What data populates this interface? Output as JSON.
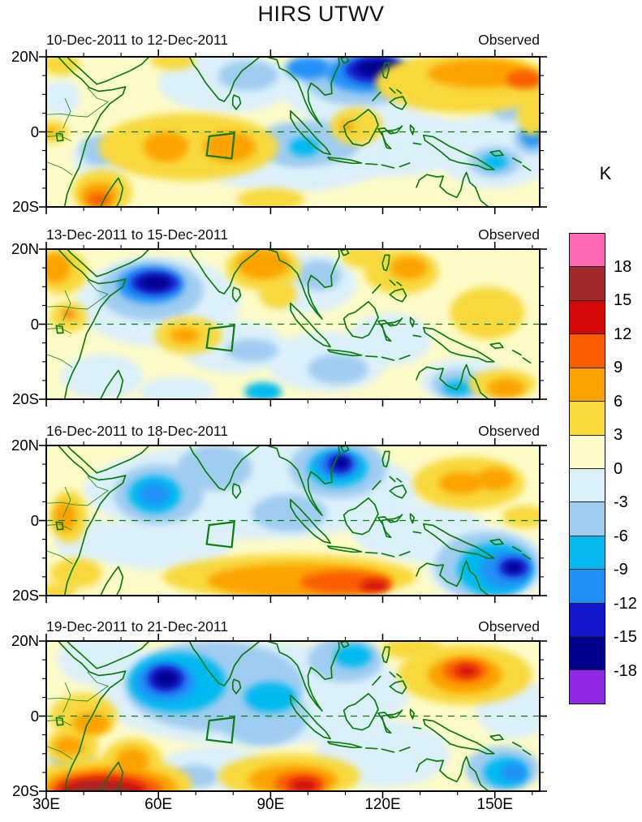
{
  "chart_data": {
    "type": "filled_contour_map_multipanel",
    "title": "HIRS UTWV",
    "unit": "K",
    "colorbar": {
      "unit_label": "K",
      "tick_labels": [
        "18",
        "15",
        "12",
        "9",
        "6",
        "3",
        "0",
        "-3",
        "-6",
        "-9",
        "-12",
        "-15",
        "-18"
      ],
      "levels": [
        18,
        15,
        12,
        9,
        6,
        3,
        0,
        -3,
        -6,
        -9,
        -12,
        -15,
        -18
      ],
      "colors_top_to_bottom": [
        "#FF69B4",
        "#A2292B",
        "#D40808",
        "#F95D00",
        "#FCA303",
        "#F8D93C",
        "#FDFBC8",
        "#DCF0FA",
        "#9FCCF0",
        "#06B9EF",
        "#2191F8",
        "#1515CC",
        "#00008C",
        "#9129E3"
      ]
    },
    "x_axis": {
      "tick_labels": [
        "30E",
        "60E",
        "90E",
        "120E",
        "150E"
      ],
      "tick_lons": [
        30,
        60,
        90,
        120,
        150
      ],
      "minor_tick_step_deg": 10,
      "lon_range": [
        30,
        162
      ]
    },
    "y_axis": {
      "tick_labels": [
        "20N",
        "0",
        "20S"
      ],
      "tick_lats": [
        20,
        0,
        -20
      ],
      "minor_tick_step_deg": 5,
      "lat_range": [
        -20,
        20
      ]
    },
    "equator_dashed_line": true,
    "roi_box_lonlat": [
      [
        73.6,
        -1.2
      ],
      [
        80.3,
        -0.4
      ],
      [
        79.6,
        -7.1
      ],
      [
        72.9,
        -6.3
      ]
    ],
    "palette": {
      "pk": "#FF69B4",
      "dr": "#A2292B",
      "rd": "#D40808",
      "od": "#F95D00",
      "or": "#FCA303",
      "gd": "#F8D93C",
      "py": "#FDFBC8",
      "pb": "#DCF0FA",
      "lb": "#9FCCF0",
      "cy": "#06B9EF",
      "db": "#2191F8",
      "mb": "#1515CC",
      "nv": "#00008C",
      "pu": "#9129E3"
    },
    "panels": [
      {
        "title": "10-Dec-2011 to 12-Dec-2011",
        "tag": "Observed",
        "blobs": [
          [
            78,
            13,
            18,
            8,
            "pb"
          ],
          [
            113,
            12,
            20,
            11,
            "pb"
          ],
          [
            150,
            -5,
            16,
            10,
            "pb"
          ],
          [
            34,
            9,
            5,
            5,
            "pb"
          ],
          [
            45,
            -7,
            8,
            6,
            "pb"
          ],
          [
            95,
            -8,
            25,
            8,
            "pb"
          ],
          [
            120,
            -3,
            25,
            9,
            "pb"
          ],
          [
            100,
            -3,
            14,
            6,
            "lb"
          ],
          [
            84,
            15,
            8,
            4,
            "lb"
          ],
          [
            114,
            14,
            15,
            7,
            "lb"
          ],
          [
            150,
            -8,
            7,
            4,
            "lb"
          ],
          [
            160,
            -2,
            5,
            4,
            "lb"
          ],
          [
            44,
            -5,
            5,
            4,
            "lb"
          ],
          [
            154,
            6,
            5,
            3,
            "lb"
          ],
          [
            97,
            -5,
            8,
            4,
            "lb"
          ],
          [
            150,
            -8,
            3.5,
            2,
            "cy"
          ],
          [
            99,
            -4,
            4,
            2.5,
            "cy"
          ],
          [
            116,
            15.5,
            11,
            5,
            "db"
          ],
          [
            100,
            17,
            6,
            3,
            "db"
          ],
          [
            160,
            -1,
            3,
            3,
            "db"
          ],
          [
            118,
            16.5,
            8,
            3.5,
            "mb"
          ],
          [
            119,
            17,
            6,
            2.2,
            "nv"
          ],
          [
            68,
            -4,
            24,
            9,
            "gd"
          ],
          [
            142,
            13,
            24,
            8,
            "gd"
          ],
          [
            45,
            -16,
            8,
            6,
            "gd"
          ],
          [
            34,
            18,
            5,
            3,
            "gd"
          ],
          [
            90,
            -18,
            9,
            3,
            "gd"
          ],
          [
            113,
            1.5,
            7,
            5,
            "gd"
          ],
          [
            32,
            0,
            4,
            3,
            "gd"
          ],
          [
            160,
            5,
            4,
            6,
            "gd"
          ],
          [
            64,
            19,
            6,
            2.5,
            "gd"
          ],
          [
            62,
            -4,
            6,
            4,
            "or"
          ],
          [
            79,
            -4,
            7,
            4,
            "or"
          ],
          [
            146,
            15.5,
            14,
            3.8,
            "or"
          ],
          [
            44,
            -17,
            5,
            3.5,
            "or"
          ],
          [
            110.5,
            1.5,
            2,
            1.3,
            "or"
          ],
          [
            31,
            0,
            1.5,
            1,
            "or"
          ],
          [
            158,
            14,
            5,
            2.5,
            "od"
          ],
          [
            44,
            -18,
            3,
            1.8,
            "od"
          ]
        ]
      },
      {
        "title": "13-Dec-2011 to 15-Dec-2011",
        "tag": "Observed",
        "blobs": [
          [
            60,
            6,
            22,
            12,
            "pb"
          ],
          [
            80,
            -6,
            14,
            7,
            "pb"
          ],
          [
            105,
            -10,
            16,
            8,
            "pb"
          ],
          [
            122,
            -4,
            11,
            7,
            "pb"
          ],
          [
            100,
            11,
            13,
            8,
            "pb"
          ],
          [
            45,
            -14,
            11,
            6,
            "pb"
          ],
          [
            142,
            -15,
            12,
            6,
            "pb"
          ],
          [
            65,
            -18,
            10,
            4,
            "pb"
          ],
          [
            58,
            9,
            14,
            8,
            "lb"
          ],
          [
            85,
            -7,
            7,
            3,
            "lb"
          ],
          [
            108,
            -12,
            8,
            4,
            "lb"
          ],
          [
            103,
            13,
            6,
            4,
            "lb"
          ],
          [
            140,
            -16,
            7,
            4,
            "lb"
          ],
          [
            88,
            -18,
            5,
            2.5,
            "cy"
          ],
          [
            140,
            -17,
            4,
            2,
            "cy"
          ],
          [
            58,
            10.5,
            9,
            5,
            "db"
          ],
          [
            59,
            11,
            6.5,
            3,
            "mb"
          ],
          [
            59,
            11,
            4,
            1.8,
            "nv"
          ],
          [
            34,
            14,
            7,
            6,
            "gd"
          ],
          [
            88,
            15,
            10,
            6,
            "gd"
          ],
          [
            92,
            8,
            5,
            4,
            "gd"
          ],
          [
            125,
            14,
            10,
            6,
            "gd"
          ],
          [
            68,
            -3,
            9,
            5,
            "gd"
          ],
          [
            148,
            3,
            10,
            7,
            "gd"
          ],
          [
            152,
            -16,
            9,
            4,
            "gd"
          ],
          [
            115,
            18,
            6,
            3,
            "gd"
          ],
          [
            36,
            2,
            5,
            4,
            "gd"
          ],
          [
            32.5,
            15,
            4,
            4,
            "or"
          ],
          [
            88,
            16,
            7,
            4,
            "or"
          ],
          [
            127,
            15,
            5,
            3,
            "or"
          ],
          [
            67,
            -3,
            4,
            2,
            "or"
          ],
          [
            153,
            -17,
            5,
            2.5,
            "or"
          ],
          [
            36,
            2.7,
            1.5,
            1,
            "od"
          ]
        ]
      },
      {
        "title": "16-Dec-2011 to 18-Dec-2011",
        "tag": "Observed",
        "blobs": [
          [
            85,
            8,
            45,
            13,
            "pb"
          ],
          [
            60,
            -6,
            20,
            7,
            "pb"
          ],
          [
            130,
            -3,
            18,
            8,
            "pb"
          ],
          [
            40,
            -5,
            8,
            6,
            "pb"
          ],
          [
            148,
            -12,
            16,
            10,
            "pb"
          ],
          [
            60,
            7,
            12,
            8,
            "lb"
          ],
          [
            108,
            14,
            13,
            8,
            "lb"
          ],
          [
            75,
            14,
            10,
            6,
            "lb"
          ],
          [
            95,
            2,
            10,
            5,
            "lb"
          ],
          [
            148,
            -12,
            14,
            9,
            "lb"
          ],
          [
            59,
            7,
            7,
            5,
            "cy"
          ],
          [
            108,
            14,
            8,
            5,
            "cy"
          ],
          [
            150,
            -13,
            10,
            7,
            "cy"
          ],
          [
            59,
            7,
            4,
            3,
            "db"
          ],
          [
            108,
            15,
            6,
            3.5,
            "db"
          ],
          [
            153,
            -13,
            7,
            5,
            "db"
          ],
          [
            108.5,
            15,
            3.5,
            2.5,
            "mb"
          ],
          [
            155,
            -12.5,
            4,
            2.5,
            "mb"
          ],
          [
            109,
            15.5,
            2,
            1.5,
            "nv"
          ],
          [
            155,
            -12.5,
            2.2,
            1.2,
            "nv"
          ],
          [
            36,
            1,
            5,
            7,
            "gd"
          ],
          [
            143,
            10,
            15,
            7,
            "gd"
          ],
          [
            95,
            -15,
            34,
            6,
            "gd"
          ],
          [
            38,
            -14,
            7,
            4,
            "gd"
          ],
          [
            158,
            1,
            6,
            3,
            "gd"
          ],
          [
            33,
            -19,
            5,
            2.5,
            "gd"
          ],
          [
            35,
            1,
            3,
            4,
            "or"
          ],
          [
            141,
            10,
            6,
            3,
            "or"
          ],
          [
            150,
            11,
            5,
            3,
            "or"
          ],
          [
            98,
            -16,
            25,
            4.5,
            "or"
          ],
          [
            110,
            -16.5,
            12,
            3,
            "od"
          ],
          [
            118,
            -17.5,
            4,
            1.5,
            "rd"
          ]
        ]
      },
      {
        "title": "19-Dec-2011 to 21-Dec-2011",
        "tag": "Observed",
        "blobs": [
          [
            85,
            6,
            42,
            14,
            "pb"
          ],
          [
            120,
            -10,
            18,
            9,
            "pb"
          ],
          [
            45,
            15,
            12,
            7,
            "pb"
          ],
          [
            155,
            2,
            10,
            8,
            "pb"
          ],
          [
            75,
            -14,
            15,
            6,
            "pb"
          ],
          [
            75,
            8,
            24,
            12,
            "lb"
          ],
          [
            88,
            0,
            12,
            8,
            "lb"
          ],
          [
            152,
            -14,
            10,
            6,
            "lb"
          ],
          [
            110,
            15,
            10,
            6,
            "lb"
          ],
          [
            70,
            -16,
            6,
            3,
            "lb"
          ],
          [
            37,
            -12,
            6,
            4,
            "lb"
          ],
          [
            65,
            9,
            13,
            8,
            "cy"
          ],
          [
            90,
            5,
            7,
            4,
            "cy"
          ],
          [
            153,
            -15,
            6,
            4,
            "cy"
          ],
          [
            112,
            16,
            5,
            3,
            "cy"
          ],
          [
            37,
            -12.5,
            3,
            2,
            "cy"
          ],
          [
            62,
            9,
            8,
            5,
            "db"
          ],
          [
            155,
            -15,
            3.5,
            2.5,
            "db"
          ],
          [
            62,
            10,
            5,
            3.5,
            "mb"
          ],
          [
            62,
            10,
            3,
            2,
            "nv"
          ],
          [
            142,
            11,
            18,
            8,
            "gd"
          ],
          [
            47,
            -18,
            22,
            7,
            "gd"
          ],
          [
            95,
            -16,
            19,
            6,
            "gd"
          ],
          [
            40,
            0,
            9,
            6,
            "gd"
          ],
          [
            37,
            -8,
            7,
            5,
            "gd"
          ],
          [
            128,
            18,
            8,
            3,
            "gd"
          ],
          [
            53,
            -12,
            8,
            6,
            "gd"
          ],
          [
            142,
            11,
            10,
            5,
            "or"
          ],
          [
            47,
            -19,
            18,
            5.5,
            "or"
          ],
          [
            96,
            -17,
            12,
            4,
            "or"
          ],
          [
            42,
            -2,
            5,
            3,
            "or"
          ],
          [
            36,
            -8,
            4,
            2.5,
            "or"
          ],
          [
            53,
            -12,
            4.5,
            3.5,
            "or"
          ],
          [
            142,
            12,
            6,
            3,
            "od"
          ],
          [
            46,
            -19.5,
            15,
            4.5,
            "od"
          ],
          [
            98,
            -18,
            7,
            3,
            "od"
          ],
          [
            142.5,
            12,
            3,
            1.5,
            "rd"
          ],
          [
            45,
            -20,
            12,
            3.5,
            "rd"
          ],
          [
            99,
            -18.5,
            4,
            1.8,
            "rd"
          ],
          [
            44,
            -20.5,
            9,
            2.8,
            "dr"
          ]
        ]
      }
    ]
  }
}
